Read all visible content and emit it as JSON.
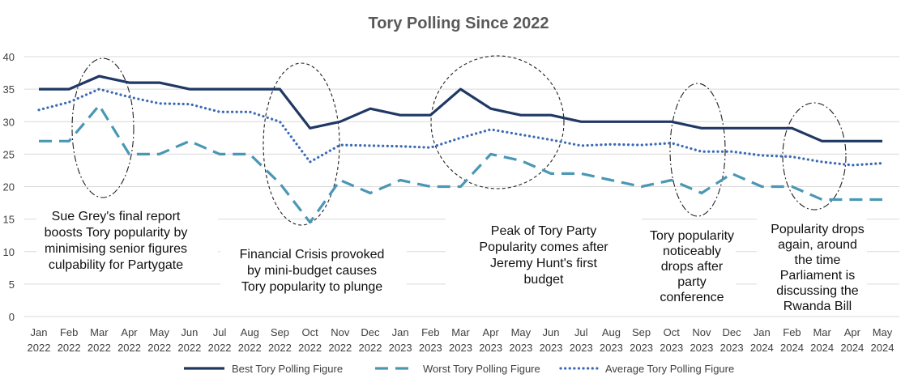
{
  "chart_data": {
    "type": "line",
    "title": "Tory Polling Since 2022",
    "xlabel": "",
    "ylabel": "",
    "ylim": [
      0,
      40
    ],
    "yticks": [
      0,
      5,
      10,
      15,
      20,
      25,
      30,
      35,
      40
    ],
    "grid": true,
    "legend_position": "bottom",
    "categories": [
      [
        "Jan",
        "2022"
      ],
      [
        "Feb",
        "2022"
      ],
      [
        "Mar",
        "2022"
      ],
      [
        "Apr",
        "2022"
      ],
      [
        "May",
        "2022"
      ],
      [
        "Jun",
        "2022"
      ],
      [
        "Jul",
        "2022"
      ],
      [
        "Aug",
        "2022"
      ],
      [
        "Sep",
        "2022"
      ],
      [
        "Oct",
        "2022"
      ],
      [
        "Nov",
        "2022"
      ],
      [
        "Dec",
        "2022"
      ],
      [
        "Jan",
        "2023"
      ],
      [
        "Feb",
        "2023"
      ],
      [
        "Mar",
        "2023"
      ],
      [
        "Apr",
        "2023"
      ],
      [
        "May",
        "2023"
      ],
      [
        "Jun",
        "2023"
      ],
      [
        "Jul",
        "2023"
      ],
      [
        "Aug",
        "2023"
      ],
      [
        "Sep",
        "2023"
      ],
      [
        "Oct",
        "2023"
      ],
      [
        "Nov",
        "2023"
      ],
      [
        "Dec",
        "2023"
      ],
      [
        "Jan",
        "2024"
      ],
      [
        "Feb",
        "2024"
      ],
      [
        "Mar",
        "2024"
      ],
      [
        "Apr",
        "2024"
      ],
      [
        "May",
        "2024"
      ]
    ],
    "series": [
      {
        "name": "Best Tory Polling Figure",
        "color": "#1f3864",
        "style": "solid",
        "values": [
          35,
          35,
          37,
          36,
          36,
          35,
          35,
          35,
          35,
          29,
          30,
          32,
          31,
          31,
          35,
          32,
          31,
          31,
          30,
          30,
          30,
          30,
          29,
          29,
          29,
          29,
          27,
          27,
          27
        ]
      },
      {
        "name": "Worst Tory Polling Figure",
        "color": "#4a97b5",
        "style": "dashed",
        "values": [
          27,
          27,
          32.5,
          25,
          25,
          27,
          25,
          25,
          20.5,
          14.5,
          21,
          19,
          21,
          20,
          20,
          25,
          24,
          22,
          22,
          21,
          20,
          21,
          19,
          22,
          20,
          20,
          18,
          18,
          18
        ]
      },
      {
        "name": "Average Tory Polling Figure",
        "color": "#3a6ab5",
        "style": "dotted",
        "values": [
          31.8,
          33,
          35,
          33.8,
          32.8,
          32.7,
          31.5,
          31.5,
          30,
          23.8,
          26.4,
          26.3,
          26.2,
          26,
          27.5,
          28.8,
          28,
          27.2,
          26.3,
          26.5,
          26.4,
          26.7,
          25.4,
          25.4,
          24.8,
          24.6,
          23.8,
          23.3,
          23.6
        ]
      }
    ],
    "annotations": [
      {
        "lines": [
          "Sue Grey's final report",
          "boosts Tory popularity by",
          "minimising senior figures",
          "culpability for Partygate"
        ]
      },
      {
        "lines": [
          "Financial Crisis provoked",
          "by mini-budget causes",
          "Tory popularity to plunge"
        ]
      },
      {
        "lines": [
          "Peak of Tory Party",
          "Popularity comes after",
          "Jeremy Hunt's first",
          "budget"
        ]
      },
      {
        "lines": [
          "Tory popularity",
          "noticeably",
          "drops after",
          "party",
          "conference"
        ]
      },
      {
        "lines": [
          "Popularity drops",
          "again, around",
          "the time",
          "Parliament is",
          "discussing the",
          "Rwanda Bill"
        ]
      }
    ]
  }
}
